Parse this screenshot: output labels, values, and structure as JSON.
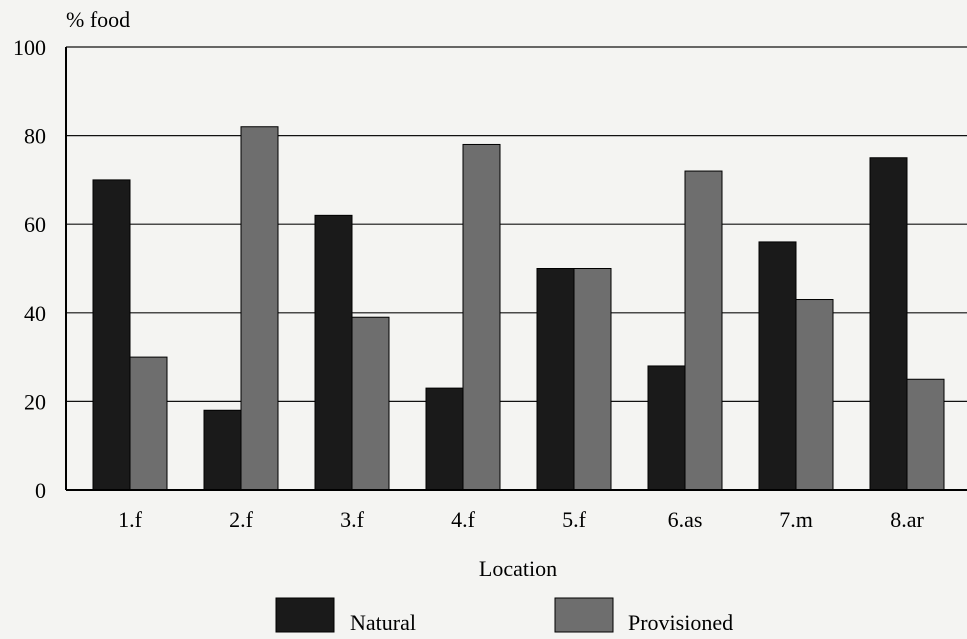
{
  "chart_data": {
    "type": "bar",
    "title": "",
    "ylabel": "% food",
    "xlabel": "Location",
    "ylim": [
      0,
      100
    ],
    "yticks": [
      0,
      20,
      40,
      60,
      80,
      100
    ],
    "grid": true,
    "categories": [
      "1.f",
      "2.f",
      "3.f",
      "4.f",
      "5.f",
      "6.as",
      "7.m",
      "8.ar"
    ],
    "series": [
      {
        "name": "Natural",
        "color": "#1a1a1a",
        "values": [
          70,
          18,
          62,
          23,
          50,
          28,
          56,
          75
        ]
      },
      {
        "name": "Provisioned",
        "color": "#6e6e6e",
        "values": [
          30,
          82,
          39,
          78,
          50,
          72,
          43,
          25
        ]
      }
    ],
    "legend_position": "bottom"
  }
}
